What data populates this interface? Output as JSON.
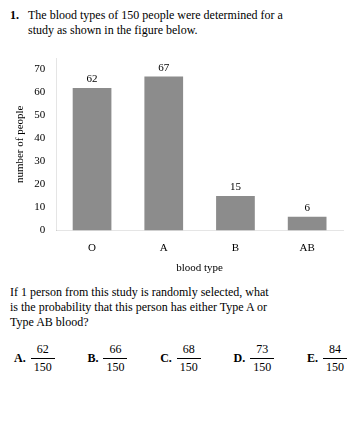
{
  "chart_data": {
    "type": "bar",
    "categories": [
      "O",
      "A",
      "B",
      "AB"
    ],
    "values": [
      62,
      67,
      15,
      6
    ],
    "color": "#8c8c8c",
    "x_label": "blood type",
    "y_label": "number of people",
    "ylim": [
      0,
      75
    ],
    "yticks": [
      0,
      10,
      20,
      30,
      40,
      50,
      60,
      70
    ],
    "data_labels": true,
    "grid": false,
    "annotations": [
      [
        "1.",
        "The blood types of 150 people were determined for a",
        "study as shown in the figure below."
      ],
      [
        "If 1 person from this study is randomly selected, what",
        "is the probability that this person has either Type A or",
        "Type AB blood?"
      ],
      [
        "A.",
        "62",
        "150"
      ],
      [
        "B.",
        "66",
        "150"
      ],
      [
        "C.",
        "68",
        "150"
      ],
      [
        "D.",
        "73",
        "150"
      ],
      [
        "E.",
        "84",
        "150"
      ]
    ]
  }
}
